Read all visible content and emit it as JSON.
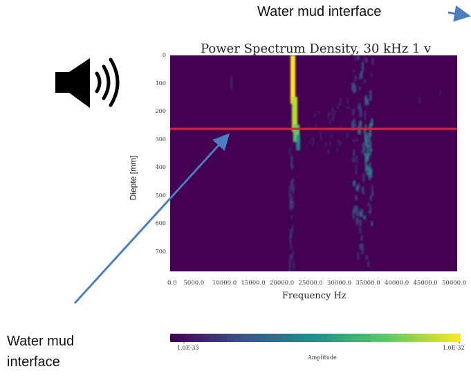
{
  "annotations": {
    "top": "Water mud interface",
    "bottom_line1": "Water mud",
    "bottom_line2": "interface"
  },
  "icons": {
    "speaker": "speaker-icon"
  },
  "colors": {
    "background": "#440154",
    "line": "#e0213a",
    "arrow": "#4a7ebf",
    "colormap": [
      "#440154",
      "#3b528b",
      "#21918c",
      "#5ec962",
      "#fde725"
    ]
  },
  "chart_data": {
    "type": "heatmap",
    "title": "Power Spectrum Density, 30 kHz 1 v",
    "xlabel": "Frequency Hz",
    "ylabel": "Diepte [mm]",
    "xlim": [
      0,
      0.05
    ],
    "ylim": [
      770,
      0
    ],
    "x_tick_labels": [
      "0.0",
      "5000.0",
      "10000.0",
      "15000.0",
      "20000.0",
      "25000.0",
      "30000.0",
      "35000.0",
      "40000.0",
      "45000.0",
      "50000.0"
    ],
    "y_ticks": [
      0,
      100,
      200,
      300,
      400,
      500,
      600,
      700
    ],
    "hline_depth": 262,
    "colorbar": {
      "label": "Amplitude",
      "min_label": "1.0E-33",
      "max_label": "1.0E-32"
    }
  }
}
